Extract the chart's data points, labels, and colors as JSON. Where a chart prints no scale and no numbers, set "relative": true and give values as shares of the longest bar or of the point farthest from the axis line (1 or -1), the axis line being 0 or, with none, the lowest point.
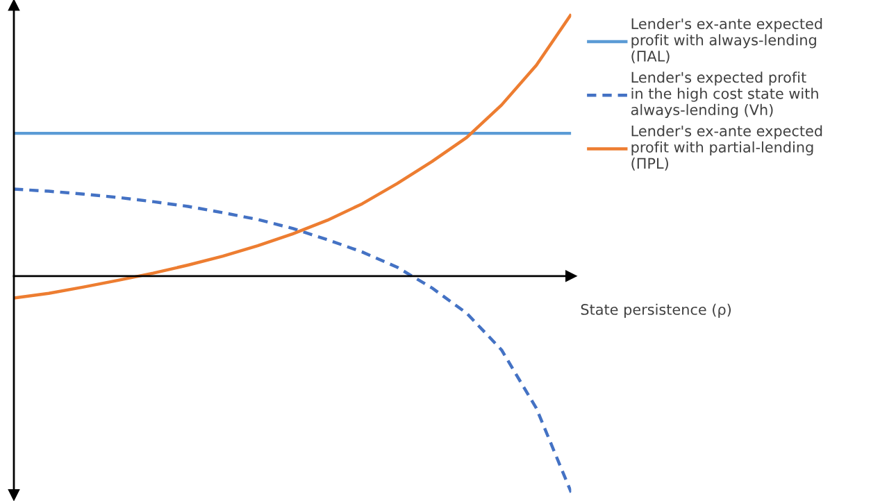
{
  "chart_data": {
    "type": "line",
    "relative": true,
    "xlabel": "State persistence (ρ)",
    "categories": [
      null,
      null,
      null,
      null,
      null,
      null,
      null,
      null,
      null,
      null,
      null,
      null,
      null,
      null,
      null,
      null,
      null
    ],
    "series": [
      {
        "name": "Lender's ex-ante expected\nprofit with always-lending\n(ΠAL)",
        "color": "#5b9bd5",
        "line_style": "solid",
        "values": [
          0.545,
          0.545,
          0.545,
          0.545,
          0.545,
          0.545,
          0.545,
          0.545,
          0.545,
          0.545,
          0.545,
          0.545,
          0.545,
          0.545,
          0.545,
          0.545,
          0.545
        ]
      },
      {
        "name": "Lender's expected profit\nin the high cost state with\nalways-lending (Vh)",
        "color": "#4472c4",
        "line_style": "dashed",
        "values": [
          0.332,
          0.324,
          0.313,
          0.3,
          0.284,
          0.266,
          0.242,
          0.216,
          0.182,
          0.139,
          0.092,
          0.034,
          -0.045,
          -0.142,
          -0.282,
          -0.505,
          -0.826
        ]
      },
      {
        "name": "Lender's ex-ante expected\nprofit with partial-lending\n(ΠPL)",
        "color": "#ed7d31",
        "line_style": "solid",
        "values": [
          -0.084,
          -0.066,
          -0.042,
          -0.016,
          0.011,
          0.042,
          0.076,
          0.116,
          0.161,
          0.213,
          0.276,
          0.353,
          0.437,
          0.529,
          0.653,
          0.805,
          1.0
        ]
      }
    ],
    "legend": "right",
    "grid": false,
    "marker": "none"
  }
}
